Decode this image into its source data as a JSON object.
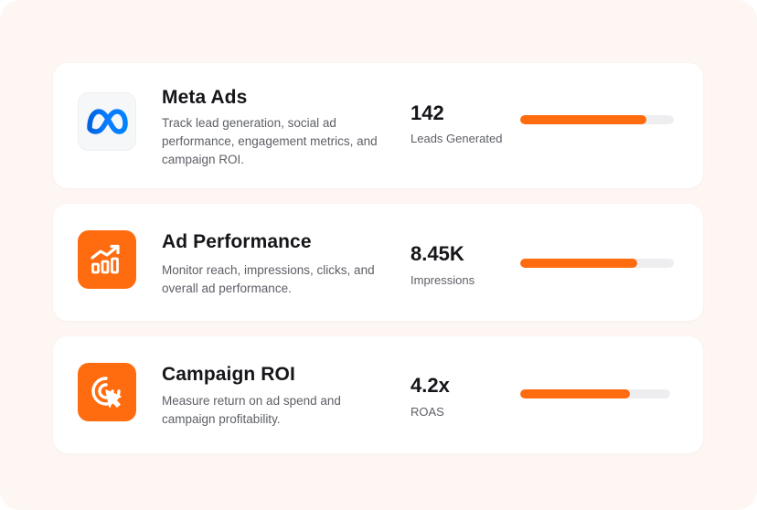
{
  "accent_color": "#ff6b0f",
  "cards": [
    {
      "icon": "meta-logo-icon",
      "title": "Meta Ads",
      "description": "Track lead generation, social ad performance, engagement metrics, and campaign ROI.",
      "metric_value": "142",
      "metric_label": "Leads Generated",
      "progress_fraction": 0.82
    },
    {
      "icon": "bar-chart-trend-icon",
      "title": "Ad Performance",
      "description": "Monitor reach, impressions, clicks, and overall ad performance.",
      "metric_value": "8.45K",
      "metric_label": "Impressions",
      "progress_fraction": 0.76
    },
    {
      "icon": "target-cursor-icon",
      "title": "Campaign ROI",
      "description": "Measure return on ad spend and campaign profitability.",
      "metric_value": "4.2x",
      "metric_label": "ROAS",
      "progress_fraction": 0.73
    }
  ]
}
